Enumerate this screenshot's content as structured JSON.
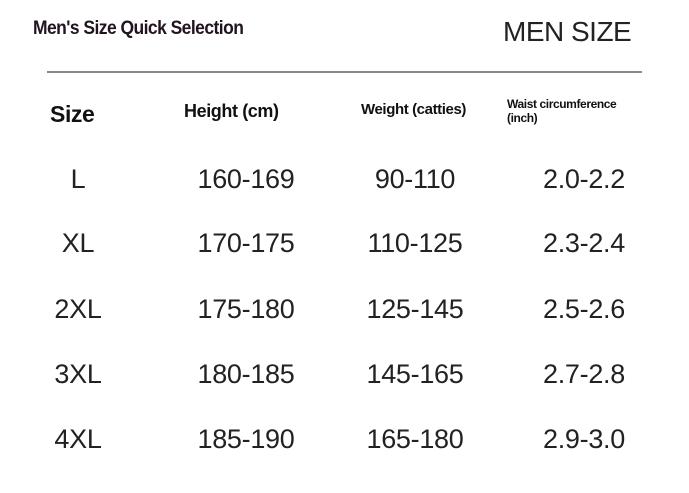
{
  "title": "Men's Size Quick Selection",
  "brand": "MEN SIZE",
  "columns": [
    "Size",
    "Height (cm)",
    "Weight (catties)",
    "Waist circumference (inch)"
  ],
  "waist_header_lines": [
    "Waist circumference",
    "(inch)"
  ],
  "rows": [
    [
      "L",
      "160-169",
      "90-110",
      "2.0-2.2"
    ],
    [
      "XL",
      "170-175",
      "110-125",
      "2.3-2.4"
    ],
    [
      "2XL",
      "175-180",
      "125-145",
      "2.5-2.6"
    ],
    [
      "3XL",
      "180-185",
      "145-165",
      "2.7-2.8"
    ],
    [
      "4XL",
      "185-190",
      "165-180",
      "2.9-3.0"
    ]
  ]
}
